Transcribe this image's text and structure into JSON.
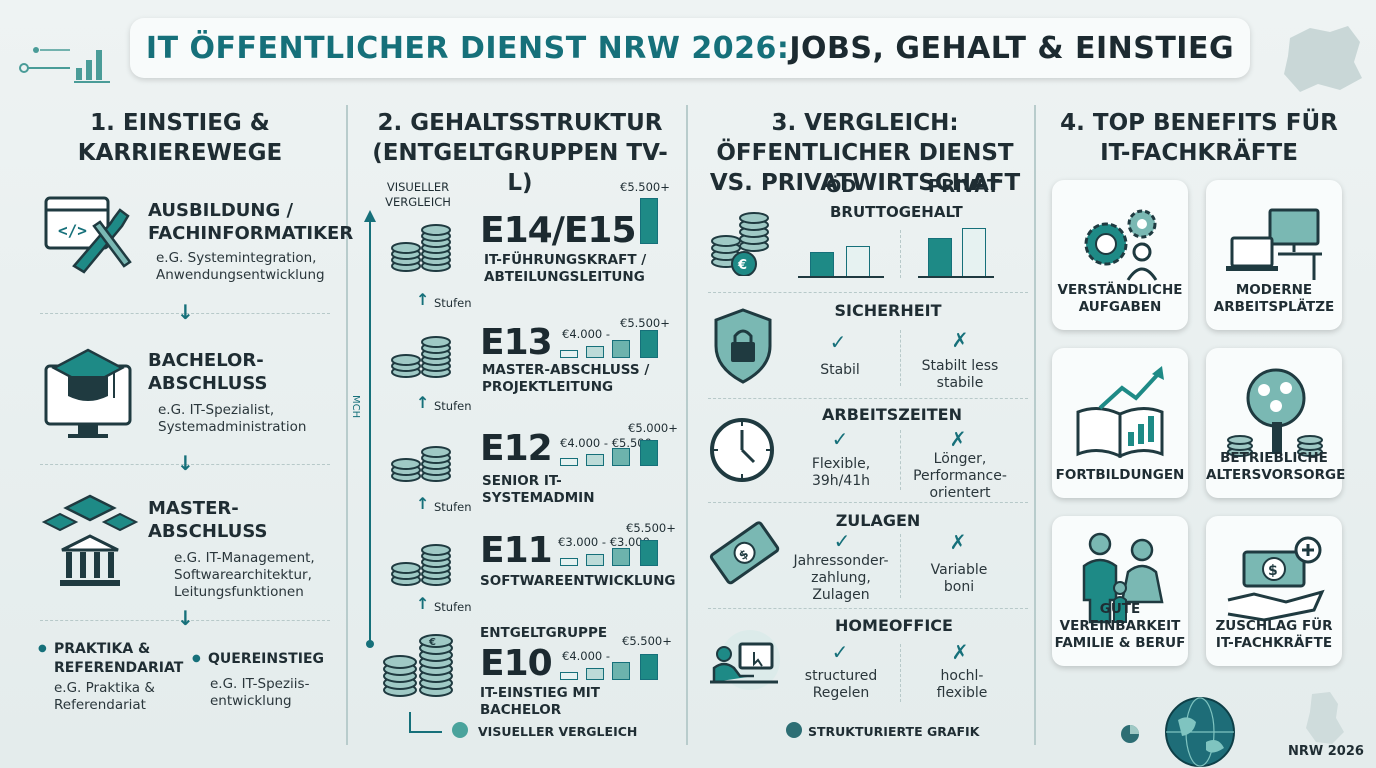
{
  "header": {
    "title_part1": "IT ÖFFENTLICHER DIENST NRW 2026:",
    "title_part2": " JOBS, GEHALT & EINSTIEG"
  },
  "col1": {
    "title": "1. EINSTIEG & KARRIEREWEGE",
    "items": [
      {
        "heading": "AUSBILDUNG / FACHINFORMATIKER",
        "sub": "e.G. Systemintegration, Anwendungsentwicklung",
        "icon": "code-wrench-icon"
      },
      {
        "heading": "BACHELOR-ABSCHLUSS",
        "sub": "e.G. IT-Spezialist, Systemadministration",
        "icon": "graduation-monitor-icon"
      },
      {
        "heading": "MASTER-ABSCHLUSS",
        "sub": "e.G. IT-Management, Softwarearchitektur, Leitungsfunktionen",
        "icon": "university-icon"
      }
    ],
    "bottom_left": {
      "heading": "PRAKTIKA & REFERENDARIAT",
      "sub": "e.G. Praktika & Referendariat"
    },
    "bottom_right": {
      "heading": "QUEREINSTIEG",
      "sub": "e.G. IT-Speziis-entwicklung"
    }
  },
  "col2": {
    "title": "2. GEHALTSSTRUKTUR (ENTGELTGRUPPEN TV-L)",
    "visual_label": "VISUELLER VERGLEICH",
    "axis_label": "MCH",
    "step_label": "Stufen",
    "groups": [
      {
        "code": "E14/E15",
        "role": "IT-FÜHRUNGSKRAFT / ABTEILUNGSLEITUNG",
        "max": "€5.500+",
        "min": ""
      },
      {
        "code": "E13",
        "role": "MASTER-ABSCHLUSS / PROJEKTLEITUNG",
        "max": "€5.500+",
        "min": "€4.000 -"
      },
      {
        "code": "E12",
        "role": "SENIOR IT-SYSTEMADMIN",
        "max": "€5.000+",
        "min": "€4.000 - €5.500"
      },
      {
        "code": "E11",
        "role": "SOFTWAREENTWICKLUNG",
        "max": "€5.500+",
        "min": "€3.000 - €3.000"
      },
      {
        "code": "E10",
        "role": "IT-EINSTIEG MIT BACHELOR",
        "max": "€5.500+",
        "min": "€4.000 -",
        "prefix": "ENTGELTGRUPPE"
      }
    ],
    "legend1": "VISUELLER VERGLEICH",
    "legend2": "STRUKTURIERTE GRAFIK"
  },
  "col3": {
    "title": "3. VERGLEICH: ÖFFENTLICHER DIENST VS. PRIVATWIRTSCHAFT",
    "col_od": "ÖD",
    "col_privat": "PRIVAT",
    "brutto": "BRUTTOGEHALT",
    "rows": [
      {
        "title": "SICHERHEIT",
        "od": "Stabil",
        "privat": "Stabilt less stabile",
        "icon": "shield-lock-icon"
      },
      {
        "title": "ARBEITSZEITEN",
        "od": "Flexible, 39h/41h",
        "privat": "Lönger, Performance-orientert",
        "icon": "clock-icon"
      },
      {
        "title": "ZULAGEN",
        "od": "Jahressonder-zahlung, Zulagen",
        "privat": "Variable boni",
        "icon": "money-icon"
      },
      {
        "title": "HOMEOFFICE",
        "od": "structured Regelen",
        "privat": "hochl-flexible",
        "icon": "homeoffice-icon"
      }
    ]
  },
  "col4": {
    "title": "4. TOP BENEFITS FÜR IT-FACHKRÄFTE",
    "cards": [
      {
        "label": "VERSTÄNDLICHE AUFGABEN",
        "icon": "gears-person-icon"
      },
      {
        "label": "MODERNE ARBEITSPLÄTZE",
        "icon": "desk-computer-icon"
      },
      {
        "label": "FORTBILDUNGEN",
        "icon": "book-growth-icon"
      },
      {
        "label": "BETRIEBLICHE ALTERSVORSORGE",
        "icon": "money-tree-icon"
      },
      {
        "label": "GUTE VEREINBARKEIT FAMILIE & BERUF",
        "icon": "family-icon"
      },
      {
        "label": "ZUSCHLAG FÜR IT-FACHKRÄFTE",
        "icon": "cash-hand-icon"
      }
    ]
  },
  "footer": {
    "badge": "NRW 2026"
  },
  "colors": {
    "teal": "#16707a",
    "accent": "#1e8a86",
    "dark": "#1c2a30"
  }
}
